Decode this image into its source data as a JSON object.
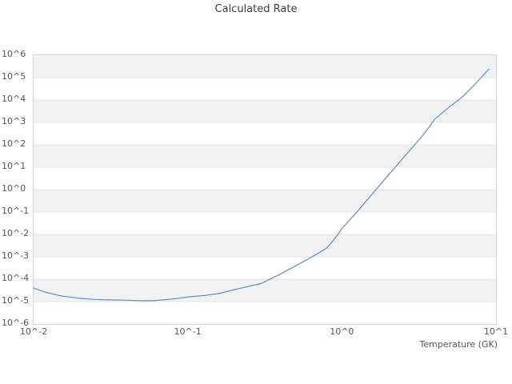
{
  "chart_data": {
    "type": "line",
    "title": "Calculated Rate",
    "xlabel": "Temperature (GK)",
    "ylabel": "",
    "x_scale": "log",
    "y_scale": "log",
    "x_axis": {
      "lim_exp": [
        -2,
        1
      ],
      "tick_exp": [
        -2,
        -1,
        0,
        1
      ],
      "tick_labels": [
        "10^-2",
        "10^-1",
        "10^0",
        "10^1"
      ]
    },
    "y_axis": {
      "lim_exp": [
        -6,
        6
      ],
      "tick_exp": [
        6,
        5,
        4,
        3,
        2,
        1,
        0,
        -1,
        -2,
        -3,
        -4,
        -5,
        -6
      ],
      "tick_labels": [
        "10^6",
        "10^5",
        "10^4",
        "10^3",
        "10^2",
        "10^1",
        "10^0",
        "10^-1",
        "10^-2",
        "10^-3",
        "10^-4",
        "10^-5",
        "10^-6"
      ]
    },
    "grid": "horizontal-gridlines-with-alternating-decade-bands",
    "legend": "none",
    "series": [
      {
        "name": "calculated-rate",
        "color": "#5b8fd0",
        "x": [
          0.01,
          0.012,
          0.015,
          0.02,
          0.025,
          0.03,
          0.04,
          0.05,
          0.06,
          0.07,
          0.08,
          0.1,
          0.13,
          0.16,
          0.2,
          0.25,
          0.3,
          0.4,
          0.5,
          0.6,
          0.7,
          0.8,
          0.9,
          1.0,
          1.25,
          1.5,
          1.75,
          2.0,
          2.5,
          3.0,
          3.5,
          4.0,
          5.0,
          6.0,
          7.0,
          8.0,
          9.0
        ],
        "y": [
          4e-05,
          2.6e-05,
          1.8e-05,
          1.4e-05,
          1.25e-05,
          1.2e-05,
          1.15e-05,
          1.1e-05,
          1.1e-05,
          1.2e-05,
          1.3e-05,
          1.6e-05,
          1.9e-05,
          2.3e-05,
          3.4e-05,
          4.8e-05,
          6.5e-05,
          0.00017,
          0.00039,
          0.00078,
          0.0014,
          0.0025,
          0.0065,
          0.018,
          0.1,
          0.43,
          1.5,
          4.5,
          26,
          110,
          380,
          1400.0,
          5000.0,
          13000.0,
          37000.0,
          100000.0,
          240000.0
        ]
      }
    ],
    "colors": {
      "line": "#5b8fd0",
      "band_fill": "#f2f2f2",
      "gridline": "#e2e2e2",
      "plot_border": "#d5d5d5",
      "tick_text": "#555555",
      "title_text": "#3d3d3d",
      "background": "#ffffff"
    }
  }
}
